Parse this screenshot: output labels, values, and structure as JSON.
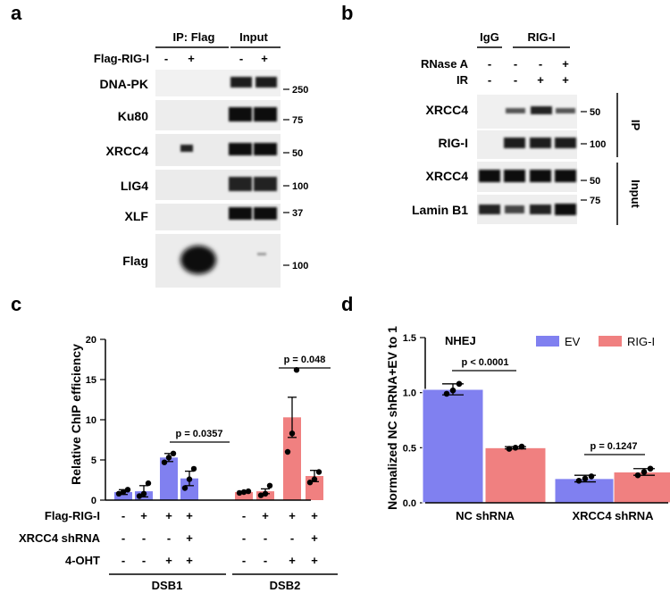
{
  "panel_a": {
    "letter": "a",
    "ip_label": "IP: Flag",
    "input_label": "Input",
    "condition": "Flag-RIG-I",
    "signs": [
      "-",
      "+",
      "-",
      "+"
    ],
    "rows": [
      {
        "label": "DNA-PK",
        "marker": "250"
      },
      {
        "label": "Ku80",
        "marker": "75"
      },
      {
        "label": "XRCC4",
        "marker": "50"
      },
      {
        "label": "LIG4",
        "marker": "100"
      },
      {
        "label": "XLF",
        "marker": "37"
      },
      {
        "label": "Flag",
        "marker": "100"
      }
    ]
  },
  "panel_b": {
    "letter": "b",
    "igg": "IgG",
    "rigi": "RIG-I",
    "rnase_label": "RNase A",
    "rnase_signs": [
      "-",
      "-",
      "-",
      "+"
    ],
    "ir_label": "IR",
    "ir_signs": [
      "-",
      "-",
      "+",
      "+"
    ],
    "rows": [
      {
        "label": "XRCC4",
        "marker": "50"
      },
      {
        "label": "RIG-I",
        "marker": "100"
      },
      {
        "label": "XRCC4",
        "marker": "50"
      },
      {
        "label": "Lamin B1",
        "marker": "75"
      }
    ],
    "ip_tag": "IP",
    "input_tag": "Input"
  },
  "panel_c": {
    "letter": "c",
    "ylabel": "Relative ChIP efficiency",
    "pvalues": [
      "p = 0.0357",
      "p = 0.048"
    ],
    "rows": [
      {
        "label": "Flag-RIG-I",
        "signs": [
          "-",
          "+",
          "+",
          "+",
          "-",
          "+",
          "+",
          "+"
        ]
      },
      {
        "label": "XRCC4 shRNA",
        "signs": [
          "-",
          "-",
          "-",
          "+",
          "-",
          "-",
          "-",
          "+"
        ]
      },
      {
        "label": "4-OHT",
        "signs": [
          "-",
          "-",
          "+",
          "+",
          "-",
          "-",
          "+",
          "+"
        ]
      }
    ],
    "group_labels": [
      "DSB1",
      "DSB2"
    ]
  },
  "panel_d": {
    "letter": "d",
    "ylabel": "Normalized NC shRNA+EV to 1",
    "inset_title": "NHEJ",
    "pvalues": [
      "p < 0.0001",
      "p = 0.1247"
    ]
  },
  "chart_data": [
    {
      "type": "bar",
      "panel": "c",
      "ylabel": "Relative ChIP efficiency",
      "ylim": [
        0,
        20
      ],
      "yticks": [
        "0",
        "5",
        "10",
        "15",
        "20"
      ],
      "groups": [
        "DSB1",
        "DSB2"
      ],
      "values": [
        1.0,
        1.1,
        5.3,
        2.7,
        1.0,
        1.1,
        10.3,
        3.0
      ],
      "errors": [
        0.3,
        0.7,
        0.5,
        0.9,
        0.1,
        0.3,
        2.5,
        0.7
      ],
      "colors": [
        "#8080f0",
        "#8080f0",
        "#8080f0",
        "#8080f0",
        "#f08080",
        "#f08080",
        "#f08080",
        "#f08080"
      ],
      "points": [
        [
          0.8,
          1.0,
          1.3
        ],
        [
          0.5,
          0.8,
          2.1
        ],
        [
          4.7,
          5.3,
          5.8
        ],
        [
          1.5,
          2.6,
          3.9
        ],
        [
          0.9,
          1.0,
          1.1
        ],
        [
          0.6,
          0.8,
          1.8
        ],
        [
          6.0,
          8.3,
          16.2
        ],
        [
          2.2,
          2.6,
          3.5
        ]
      ]
    },
    {
      "type": "bar",
      "panel": "d",
      "ylabel": "Normalized NC shRNA+EV to 1",
      "ylim": [
        0,
        1.5
      ],
      "yticks": [
        "0.0",
        "0.5",
        "1.0",
        "1.5"
      ],
      "categories": [
        "NC shRNA",
        "XRCC4 shRNA"
      ],
      "legend_position": "top-right",
      "series": [
        {
          "name": "EV",
          "color": "#8080f0",
          "values": [
            1.03,
            0.22
          ],
          "errors": [
            0.05,
            0.03
          ],
          "points": [
            [
              0.99,
              1.02,
              1.08
            ],
            [
              0.2,
              0.22,
              0.24
            ]
          ]
        },
        {
          "name": "RIG-I",
          "color": "#f08080",
          "values": [
            0.5,
            0.28
          ],
          "errors": [
            0.01,
            0.03
          ],
          "points": [
            [
              0.49,
              0.5,
              0.51
            ],
            [
              0.25,
              0.28,
              0.31
            ]
          ]
        }
      ]
    }
  ]
}
